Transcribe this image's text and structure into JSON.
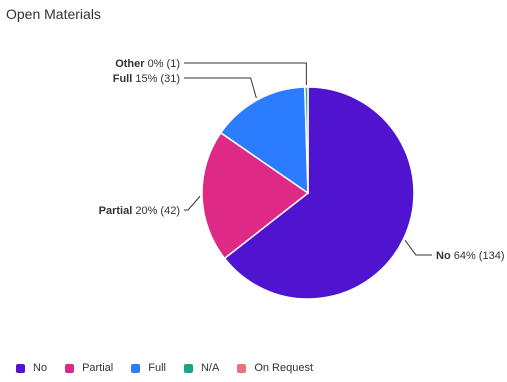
{
  "chart_data": {
    "type": "pie",
    "title": "Open Materials",
    "slices": [
      {
        "name": "No",
        "percent_label": "64%",
        "count_label": "(134)",
        "value": 134,
        "color": "#5014d0"
      },
      {
        "name": "Partial",
        "percent_label": "20%",
        "count_label": "(42)",
        "value": 42,
        "color": "#de2a86"
      },
      {
        "name": "Full",
        "percent_label": "15%",
        "count_label": "(31)",
        "value": 31,
        "color": "#2b7cff"
      },
      {
        "name": "N/A",
        "percent_label": "",
        "count_label": "",
        "value": 0,
        "color": "#15a883"
      },
      {
        "name": "On Request",
        "percent_label": "",
        "count_label": "",
        "value": 0,
        "color": "#f07078"
      },
      {
        "name": "Other",
        "percent_label": "0%",
        "count_label": "(1)",
        "value": 1,
        "color": "#2bb37a"
      }
    ],
    "legend": {
      "placement": "bottom-left",
      "entries": [
        {
          "name": "No",
          "color": "#5014d0"
        },
        {
          "name": "Partial",
          "color": "#de2a86"
        },
        {
          "name": "Full",
          "color": "#2b7cff"
        },
        {
          "name": "N/A",
          "color": "#15a883"
        },
        {
          "name": "On Request",
          "color": "#f07078"
        }
      ]
    }
  }
}
